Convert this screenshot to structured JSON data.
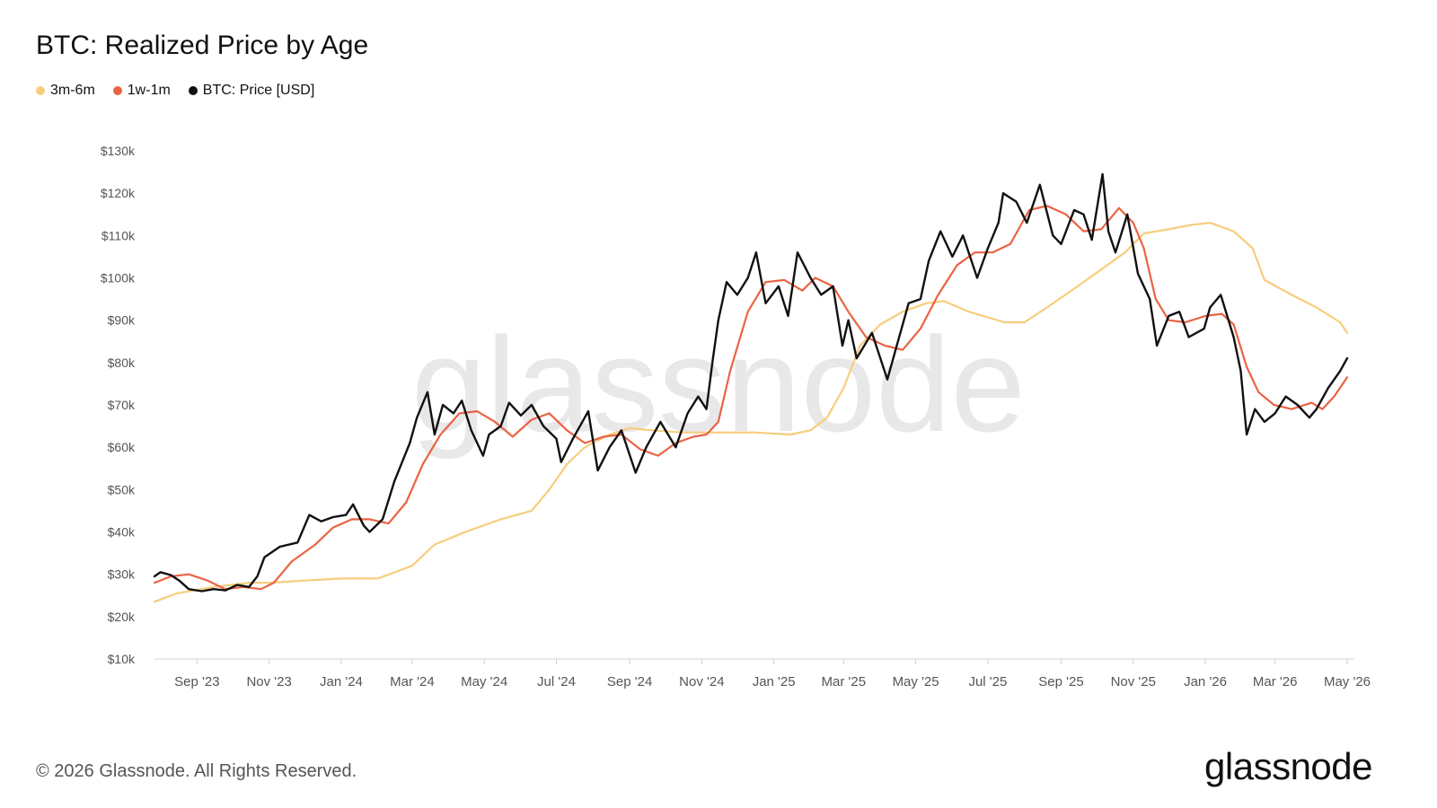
{
  "header": {
    "title": "BTC: Realized Price by Age"
  },
  "legend": [
    {
      "label": "3m-6m",
      "color": "#f7cd7c"
    },
    {
      "label": "1w-1m",
      "color": "#ea6344"
    },
    {
      "label": "BTC: Price [USD]",
      "color": "#111111"
    }
  ],
  "watermark": "glassnode",
  "footer": {
    "copyright": "© 2026 Glassnode. All Rights Reserved.",
    "brand": "glassnode"
  },
  "chart_data": {
    "type": "line",
    "title": "BTC: Realized Price by Age",
    "xlabel": "",
    "ylabel": "",
    "x_range": [
      "2023-07-27",
      "2026-05-01"
    ],
    "ylim": [
      10,
      130
    ],
    "y_unit": "thousand USD",
    "y_ticks": [
      10,
      20,
      30,
      40,
      50,
      60,
      70,
      80,
      90,
      100,
      110,
      120,
      130
    ],
    "y_tick_labels": [
      "$10k",
      "$20k",
      "$30k",
      "$40k",
      "$50k",
      "$60k",
      "$70k",
      "$80k",
      "$90k",
      "$100k",
      "$110k",
      "$120k",
      "$130k"
    ],
    "x_ticks": [
      "2023-09-01",
      "2023-11-01",
      "2024-01-01",
      "2024-03-01",
      "2024-05-01",
      "2024-07-01",
      "2024-09-01",
      "2024-11-01",
      "2025-01-01",
      "2025-03-01",
      "2025-05-01",
      "2025-07-01",
      "2025-09-01",
      "2025-11-01",
      "2026-01-01",
      "2026-03-01",
      "2026-05-01"
    ],
    "x_tick_labels": [
      "Sep '23",
      "Nov '23",
      "Jan '24",
      "Mar '24",
      "May '24",
      "Jul '24",
      "Sep '24",
      "Nov '24",
      "Jan '25",
      "Mar '25",
      "May '25",
      "Jul '25",
      "Sep '25",
      "Nov '25",
      "Jan '26",
      "Mar '26",
      "May '26"
    ],
    "grid": false,
    "legend_position": "top-left",
    "series": [
      {
        "name": "3m-6m",
        "color": "#f7cd7c",
        "points": [
          [
            "2023-07-27",
            23.5
          ],
          [
            "2023-08-15",
            25.5
          ],
          [
            "2023-09-15",
            27
          ],
          [
            "2023-10-15",
            28
          ],
          [
            "2023-11-01",
            28
          ],
          [
            "2023-12-01",
            28.5
          ],
          [
            "2024-01-01",
            29
          ],
          [
            "2024-02-01",
            29
          ],
          [
            "2024-03-01",
            32
          ],
          [
            "2024-03-20",
            37
          ],
          [
            "2024-04-15",
            40
          ],
          [
            "2024-05-15",
            43
          ],
          [
            "2024-06-10",
            45
          ],
          [
            "2024-06-25",
            50
          ],
          [
            "2024-07-10",
            56
          ],
          [
            "2024-07-25",
            60
          ],
          [
            "2024-08-15",
            63
          ],
          [
            "2024-09-01",
            64.5
          ],
          [
            "2024-09-20",
            64
          ],
          [
            "2024-10-15",
            63.5
          ],
          [
            "2024-11-15",
            63.5
          ],
          [
            "2024-12-15",
            63.5
          ],
          [
            "2025-01-15",
            63
          ],
          [
            "2025-02-01",
            64
          ],
          [
            "2025-02-15",
            67
          ],
          [
            "2025-03-01",
            74
          ],
          [
            "2025-03-15",
            84
          ],
          [
            "2025-04-01",
            89
          ],
          [
            "2025-04-20",
            92
          ],
          [
            "2025-05-10",
            94
          ],
          [
            "2025-05-25",
            94.5
          ],
          [
            "2025-06-15",
            92
          ],
          [
            "2025-07-15",
            89.5
          ],
          [
            "2025-08-01",
            89.5
          ],
          [
            "2025-08-20",
            93
          ],
          [
            "2025-09-15",
            98
          ],
          [
            "2025-10-05",
            102
          ],
          [
            "2025-10-25",
            106
          ],
          [
            "2025-11-10",
            110.5
          ],
          [
            "2025-12-01",
            111.5
          ],
          [
            "2025-12-20",
            112.5
          ],
          [
            "2026-01-05",
            113
          ],
          [
            "2026-01-25",
            111
          ],
          [
            "2026-02-10",
            107
          ],
          [
            "2026-02-20",
            99.5
          ],
          [
            "2026-03-15",
            96
          ],
          [
            "2026-04-05",
            93
          ],
          [
            "2026-04-25",
            89.5
          ],
          [
            "2026-05-01",
            87
          ]
        ]
      },
      {
        "name": "1w-1m",
        "color": "#ea6344",
        "points": [
          [
            "2023-07-27",
            28
          ],
          [
            "2023-08-10",
            29.5
          ],
          [
            "2023-08-25",
            30
          ],
          [
            "2023-09-10",
            28.5
          ],
          [
            "2023-09-25",
            26.5
          ],
          [
            "2023-10-10",
            27
          ],
          [
            "2023-10-25",
            26.5
          ],
          [
            "2023-11-05",
            28
          ],
          [
            "2023-11-20",
            33
          ],
          [
            "2023-12-10",
            37
          ],
          [
            "2023-12-25",
            41
          ],
          [
            "2024-01-10",
            43
          ],
          [
            "2024-01-25",
            43
          ],
          [
            "2024-02-10",
            42
          ],
          [
            "2024-02-25",
            47
          ],
          [
            "2024-03-10",
            56
          ],
          [
            "2024-03-25",
            63
          ],
          [
            "2024-04-10",
            68
          ],
          [
            "2024-04-25",
            68.5
          ],
          [
            "2024-05-10",
            66
          ],
          [
            "2024-05-25",
            62.5
          ],
          [
            "2024-06-10",
            66.5
          ],
          [
            "2024-06-25",
            68
          ],
          [
            "2024-07-10",
            64
          ],
          [
            "2024-07-25",
            61
          ],
          [
            "2024-08-10",
            62.5
          ],
          [
            "2024-08-25",
            63
          ],
          [
            "2024-09-10",
            59.5
          ],
          [
            "2024-09-25",
            58
          ],
          [
            "2024-10-10",
            61
          ],
          [
            "2024-10-25",
            62.5
          ],
          [
            "2024-11-05",
            63
          ],
          [
            "2024-11-15",
            66
          ],
          [
            "2024-11-25",
            78
          ],
          [
            "2024-12-10",
            92
          ],
          [
            "2024-12-25",
            99
          ],
          [
            "2025-01-10",
            99.5
          ],
          [
            "2025-01-25",
            97
          ],
          [
            "2025-02-05",
            100
          ],
          [
            "2025-02-20",
            98
          ],
          [
            "2025-03-05",
            92
          ],
          [
            "2025-03-20",
            86
          ],
          [
            "2025-04-05",
            84
          ],
          [
            "2025-04-20",
            83
          ],
          [
            "2025-05-05",
            88
          ],
          [
            "2025-05-20",
            96
          ],
          [
            "2025-06-05",
            103
          ],
          [
            "2025-06-20",
            106
          ],
          [
            "2025-07-05",
            106
          ],
          [
            "2025-07-20",
            108
          ],
          [
            "2025-08-05",
            116
          ],
          [
            "2025-08-20",
            117
          ],
          [
            "2025-09-05",
            115
          ],
          [
            "2025-09-20",
            111
          ],
          [
            "2025-10-05",
            111.5
          ],
          [
            "2025-10-20",
            116.5
          ],
          [
            "2025-11-01",
            113
          ],
          [
            "2025-11-10",
            107
          ],
          [
            "2025-11-20",
            95
          ],
          [
            "2025-12-01",
            90
          ],
          [
            "2025-12-15",
            89.5
          ],
          [
            "2026-01-01",
            91
          ],
          [
            "2026-01-15",
            91.5
          ],
          [
            "2026-01-25",
            89
          ],
          [
            "2026-02-05",
            79
          ],
          [
            "2026-02-15",
            73
          ],
          [
            "2026-02-28",
            70
          ],
          [
            "2026-03-15",
            69
          ],
          [
            "2026-04-01",
            70.5
          ],
          [
            "2026-04-10",
            69
          ],
          [
            "2026-04-20",
            72
          ],
          [
            "2026-05-01",
            76.5
          ]
        ]
      },
      {
        "name": "BTC: Price [USD]",
        "color": "#111111",
        "points": [
          [
            "2023-07-27",
            29.5
          ],
          [
            "2023-08-01",
            30.5
          ],
          [
            "2023-08-10",
            29.8
          ],
          [
            "2023-08-17",
            28.5
          ],
          [
            "2023-08-25",
            26.5
          ],
          [
            "2023-09-05",
            26
          ],
          [
            "2023-09-15",
            26.5
          ],
          [
            "2023-09-25",
            26.2
          ],
          [
            "2023-10-05",
            27.5
          ],
          [
            "2023-10-15",
            27
          ],
          [
            "2023-10-22",
            29.5
          ],
          [
            "2023-10-28",
            34
          ],
          [
            "2023-11-10",
            36.5
          ],
          [
            "2023-11-25",
            37.5
          ],
          [
            "2023-12-05",
            44
          ],
          [
            "2023-12-15",
            42.5
          ],
          [
            "2023-12-25",
            43.5
          ],
          [
            "2024-01-05",
            44
          ],
          [
            "2024-01-11",
            46.5
          ],
          [
            "2024-01-20",
            41.5
          ],
          [
            "2024-01-25",
            40
          ],
          [
            "2024-02-05",
            43
          ],
          [
            "2024-02-15",
            52
          ],
          [
            "2024-02-28",
            61
          ],
          [
            "2024-03-05",
            67
          ],
          [
            "2024-03-14",
            73
          ],
          [
            "2024-03-20",
            63
          ],
          [
            "2024-03-27",
            70
          ],
          [
            "2024-04-05",
            68
          ],
          [
            "2024-04-12",
            71
          ],
          [
            "2024-04-20",
            64
          ],
          [
            "2024-04-30",
            58
          ],
          [
            "2024-05-05",
            63
          ],
          [
            "2024-05-15",
            65
          ],
          [
            "2024-05-22",
            70.5
          ],
          [
            "2024-06-01",
            67.5
          ],
          [
            "2024-06-10",
            70
          ],
          [
            "2024-06-20",
            65
          ],
          [
            "2024-07-01",
            62
          ],
          [
            "2024-07-05",
            56.5
          ],
          [
            "2024-07-15",
            62
          ],
          [
            "2024-07-28",
            68.5
          ],
          [
            "2024-08-05",
            54.5
          ],
          [
            "2024-08-15",
            60
          ],
          [
            "2024-08-25",
            64
          ],
          [
            "2024-09-06",
            54
          ],
          [
            "2024-09-15",
            60
          ],
          [
            "2024-09-27",
            66
          ],
          [
            "2024-10-10",
            60
          ],
          [
            "2024-10-20",
            68
          ],
          [
            "2024-10-29",
            72
          ],
          [
            "2024-11-05",
            69
          ],
          [
            "2024-11-10",
            80
          ],
          [
            "2024-11-15",
            90
          ],
          [
            "2024-11-22",
            99
          ],
          [
            "2024-12-01",
            96
          ],
          [
            "2024-12-10",
            100
          ],
          [
            "2024-12-17",
            106
          ],
          [
            "2024-12-25",
            94
          ],
          [
            "2025-01-05",
            98
          ],
          [
            "2025-01-13",
            91
          ],
          [
            "2025-01-21",
            106
          ],
          [
            "2025-02-01",
            100
          ],
          [
            "2025-02-10",
            96
          ],
          [
            "2025-02-20",
            98
          ],
          [
            "2025-02-28",
            84
          ],
          [
            "2025-03-05",
            90
          ],
          [
            "2025-03-12",
            81
          ],
          [
            "2025-03-25",
            87
          ],
          [
            "2025-04-07",
            76
          ],
          [
            "2025-04-15",
            84
          ],
          [
            "2025-04-25",
            94
          ],
          [
            "2025-05-05",
            95
          ],
          [
            "2025-05-12",
            104
          ],
          [
            "2025-05-22",
            111
          ],
          [
            "2025-06-01",
            105
          ],
          [
            "2025-06-10",
            110
          ],
          [
            "2025-06-22",
            100
          ],
          [
            "2025-07-01",
            107
          ],
          [
            "2025-07-10",
            113
          ],
          [
            "2025-07-14",
            120
          ],
          [
            "2025-07-25",
            118
          ],
          [
            "2025-08-03",
            113
          ],
          [
            "2025-08-14",
            122
          ],
          [
            "2025-08-25",
            110
          ],
          [
            "2025-09-01",
            108
          ],
          [
            "2025-09-12",
            116
          ],
          [
            "2025-09-20",
            115
          ],
          [
            "2025-09-27",
            109
          ],
          [
            "2025-10-06",
            124.5
          ],
          [
            "2025-10-11",
            111
          ],
          [
            "2025-10-17",
            106
          ],
          [
            "2025-10-27",
            115
          ],
          [
            "2025-11-05",
            101
          ],
          [
            "2025-11-15",
            95
          ],
          [
            "2025-11-21",
            84
          ],
          [
            "2025-12-01",
            91
          ],
          [
            "2025-12-10",
            92
          ],
          [
            "2025-12-18",
            86
          ],
          [
            "2025-12-31",
            88
          ],
          [
            "2026-01-05",
            93
          ],
          [
            "2026-01-14",
            96
          ],
          [
            "2026-01-25",
            86
          ],
          [
            "2026-01-31",
            78
          ],
          [
            "2026-02-05",
            63
          ],
          [
            "2026-02-12",
            69
          ],
          [
            "2026-02-20",
            66
          ],
          [
            "2026-03-01",
            68
          ],
          [
            "2026-03-10",
            72
          ],
          [
            "2026-03-20",
            70
          ],
          [
            "2026-03-30",
            67
          ],
          [
            "2026-04-05",
            69
          ],
          [
            "2026-04-15",
            74
          ],
          [
            "2026-04-25",
            78
          ],
          [
            "2026-05-01",
            81
          ]
        ]
      }
    ]
  }
}
